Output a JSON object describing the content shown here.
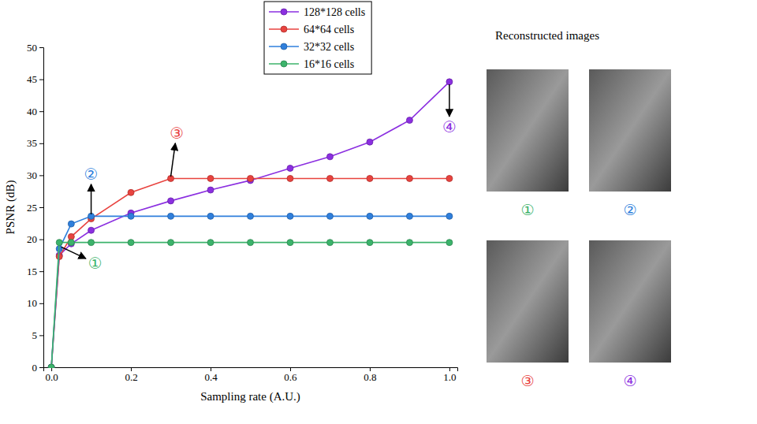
{
  "chart_data": {
    "type": "line",
    "x_label": "Sampling rate (A.U.)",
    "y_label": "PSNR (dB)",
    "x": [
      0,
      0.02,
      0.05,
      0.1,
      0.2,
      0.3,
      0.4,
      0.5,
      0.6,
      0.7,
      0.8,
      0.9,
      1.0
    ],
    "series": [
      {
        "name": "128*128 cells",
        "color": "#8b2fe0",
        "marker": "circle",
        "line_style": "solid",
        "values": [
          0,
          17.5,
          19.3,
          21.4,
          24.1,
          26.0,
          27.7,
          29.2,
          31.1,
          32.9,
          35.2,
          38.6,
          44.6
        ]
      },
      {
        "name": "64*64 cells",
        "color": "#e8433f",
        "marker": "circle",
        "line_style": "solid",
        "values": [
          0,
          17.3,
          20.4,
          23.2,
          27.3,
          29.5,
          29.5,
          29.5,
          29.5,
          29.5,
          29.5,
          29.5,
          29.5
        ]
      },
      {
        "name": "32*32 cells",
        "color": "#2f7fdc",
        "marker": "circle",
        "line_style": "solid",
        "values": [
          0,
          18.5,
          22.4,
          23.6,
          23.6,
          23.6,
          23.6,
          23.6,
          23.6,
          23.6,
          23.6,
          23.6,
          23.6
        ]
      },
      {
        "name": "16*16 cells",
        "color": "#3cb36b",
        "marker": "circle",
        "line_style": "solid",
        "values": [
          0,
          19.5,
          19.5,
          19.5,
          19.5,
          19.5,
          19.5,
          19.5,
          19.5,
          19.5,
          19.5,
          19.5,
          19.5
        ]
      }
    ],
    "xlim": [
      -0.02,
      1.02
    ],
    "xticks": [
      {
        "value": 0,
        "label": "0.0"
      },
      0.2,
      0.4,
      0.6,
      0.8,
      {
        "value": 1,
        "label": "1.0"
      }
    ],
    "ylim": [
      0,
      50
    ],
    "yticks": [
      0,
      5,
      10,
      15,
      20,
      25,
      30,
      35,
      40,
      45,
      50
    ],
    "grid": false,
    "legend": "top",
    "annotations": [
      {
        "text": "①",
        "x": 0.11,
        "y": 16.3,
        "color": "#3cb36b",
        "arrow_from": [
          0.025,
          18.8
        ]
      },
      {
        "text": "②",
        "x": 0.1,
        "y": 30.2,
        "color": "#2f7fdc",
        "arrow_from": [
          0.1,
          23.9
        ]
      },
      {
        "text": "③",
        "x": 0.315,
        "y": 36.6,
        "color": "#e8433f",
        "arrow_from": [
          0.3,
          29.8
        ]
      },
      {
        "text": "④",
        "x": 1.0,
        "y": 37.6,
        "color": "#8b2fe0",
        "arrow_from": [
          1.0,
          44.2
        ]
      }
    ]
  },
  "images": {
    "title": "Reconstructed images",
    "labels": [
      "①",
      "②",
      "③",
      "④"
    ],
    "colors": [
      "#3cb36b",
      "#2f7fdc",
      "#e8433f",
      "#8b2fe0"
    ]
  }
}
